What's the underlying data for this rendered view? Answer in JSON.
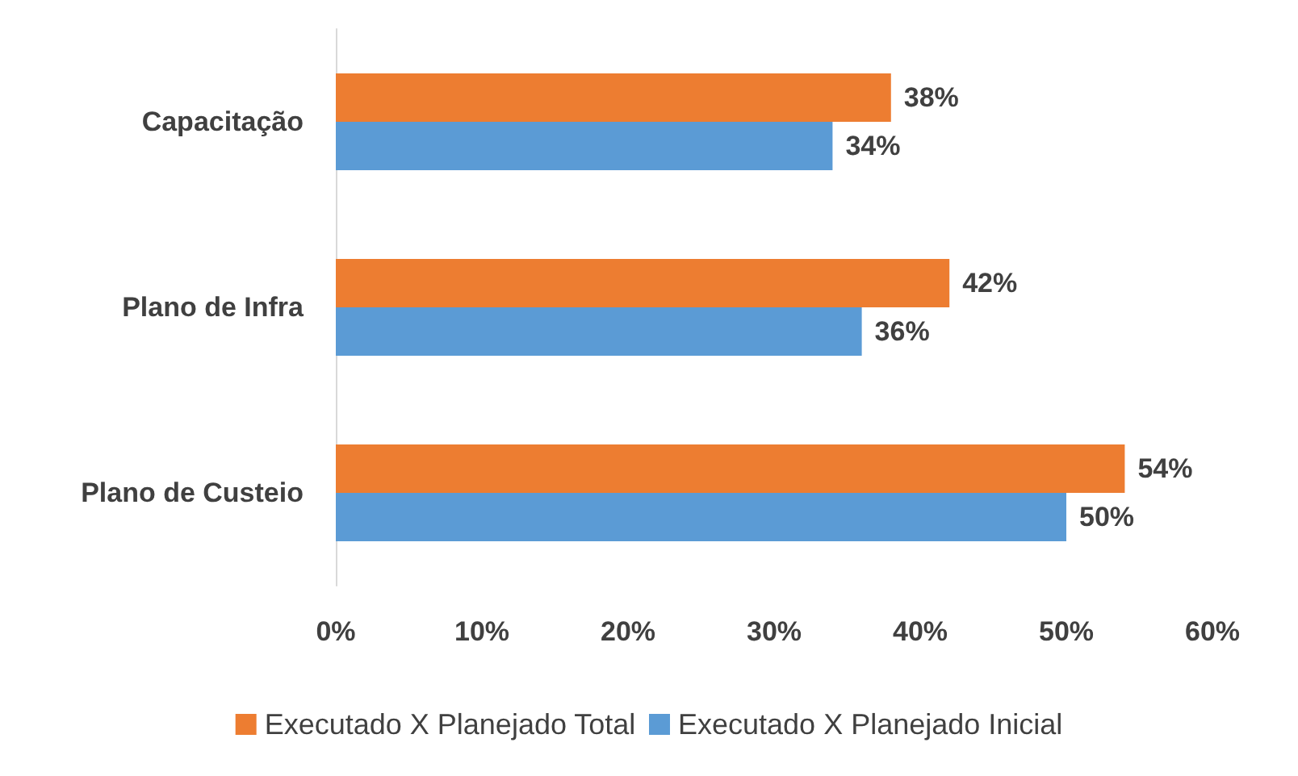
{
  "chart_data": {
    "type": "bar",
    "orientation": "horizontal",
    "categories": [
      "Capacitação",
      "Plano de Infra",
      "Plano de Custeio"
    ],
    "series": [
      {
        "name": "Executado X Planejado Total",
        "color": "#ed7d31",
        "values": [
          38,
          42,
          54
        ],
        "value_labels": [
          "38%",
          "42%",
          "54%"
        ]
      },
      {
        "name": "Executado X Planejado Inicial",
        "color": "#5b9bd5",
        "values": [
          34,
          36,
          50
        ],
        "value_labels": [
          "34%",
          "36%",
          "50%"
        ]
      }
    ],
    "xlim": [
      0,
      60
    ],
    "xticks": [
      {
        "value": 0,
        "label": "0%"
      },
      {
        "value": 10,
        "label": "10%"
      },
      {
        "value": 20,
        "label": "20%"
      },
      {
        "value": 30,
        "label": "30%"
      },
      {
        "value": 40,
        "label": "40%"
      },
      {
        "value": 50,
        "label": "50%"
      },
      {
        "value": 60,
        "label": "60%"
      }
    ],
    "grid": false,
    "legend": "bottom"
  }
}
